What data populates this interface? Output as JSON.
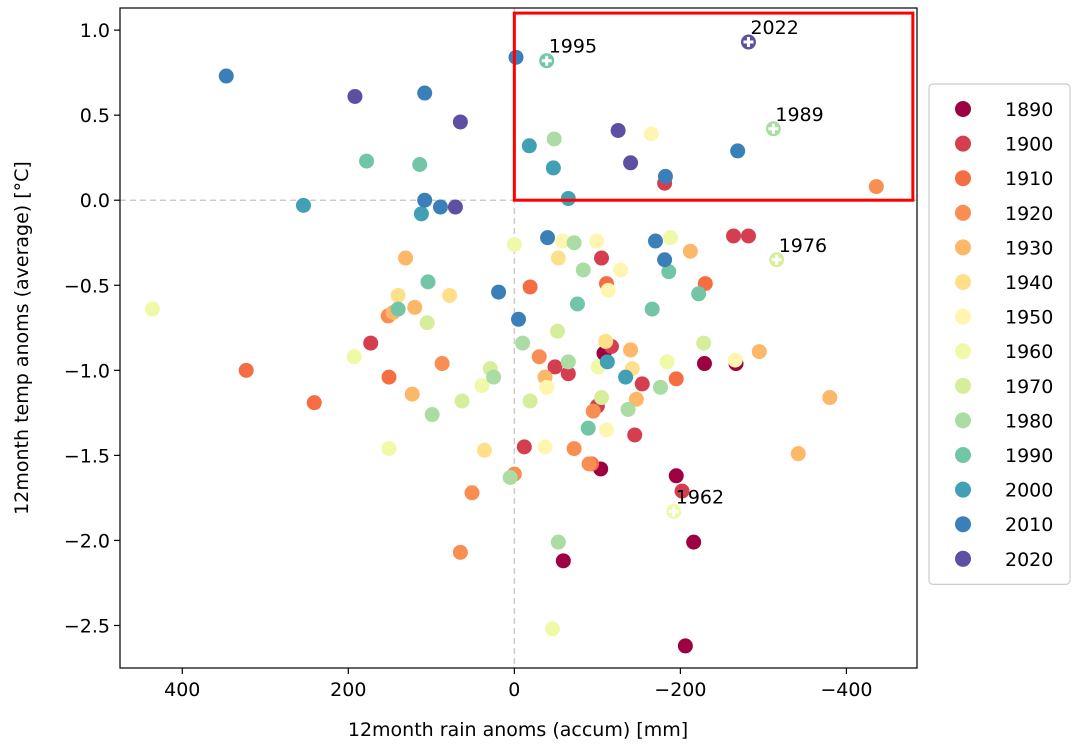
{
  "chart_data": {
    "type": "scatter",
    "x_label": "12month rain anoms (accum) [mm]",
    "y_label": "12month temp anoms (average) [°C]",
    "xlim": [
      475,
      -485
    ],
    "ylim": [
      -2.75,
      1.13
    ],
    "xticks": [
      400,
      200,
      0,
      {
        "value": -200,
        "label": "−200"
      },
      {
        "value": -400,
        "label": "−400"
      }
    ],
    "yticks": [
      {
        "value": -2.5,
        "label": "−2.5"
      },
      {
        "value": -2.0,
        "label": "−2.0"
      },
      {
        "value": -1.5,
        "label": "−1.5"
      },
      {
        "value": -1.0,
        "label": "−1.0"
      },
      {
        "value": -0.5,
        "label": "−0.5"
      },
      {
        "value": 0,
        "label": "0.0"
      },
      0.5,
      {
        "value": 1.0,
        "label": "1.0"
      }
    ],
    "zero_lines": true,
    "legend": "right",
    "highlight": {
      "x": [
        0,
        -480
      ],
      "y": [
        0,
        1.1
      ],
      "color": "#ff0000"
    },
    "series": [
      {
        "name": "1890",
        "color": "#9e0142",
        "x": [
          -59,
          -206,
          -216,
          -195,
          -229,
          -267,
          -108,
          -104
        ],
        "values": [
          -2.12,
          -2.62,
          -2.01,
          -1.62,
          -0.96,
          -0.96,
          -0.9,
          -1.58
        ]
      },
      {
        "name": "1900",
        "color": "#d53e4f",
        "x": [
          173,
          -105,
          -181,
          -12,
          -65,
          -117,
          -145,
          -154,
          -264,
          -282,
          -202,
          -100,
          -49
        ],
        "values": [
          -0.84,
          -0.34,
          0.1,
          -1.45,
          -1.02,
          -0.86,
          -1.38,
          -1.08,
          -0.21,
          -0.21,
          -1.71,
          -1.21,
          -0.98
        ]
      },
      {
        "name": "1910",
        "color": "#f46d43",
        "x": [
          323,
          241,
          151,
          -230,
          -195,
          -111,
          -93,
          -19
        ],
        "values": [
          -1.0,
          -1.19,
          -1.04,
          -0.49,
          -1.05,
          -0.49,
          -1.55,
          -0.51
        ]
      },
      {
        "name": "1920",
        "color": "#f98e52",
        "x": [
          51,
          65,
          -30,
          0,
          -90,
          -95,
          -72,
          -436,
          152,
          87
        ],
        "values": [
          -1.72,
          -2.07,
          -0.92,
          -1.61,
          -1.55,
          -1.24,
          -1.46,
          0.08,
          -0.68,
          -0.96
        ]
      },
      {
        "name": "1930",
        "color": "#fdb768",
        "x": [
          131,
          146,
          123,
          -37,
          -140,
          -147,
          -295,
          -380,
          -342,
          -212,
          120
        ],
        "values": [
          -0.34,
          -0.66,
          -1.14,
          -1.04,
          -0.88,
          -1.17,
          -0.89,
          -1.16,
          -1.49,
          -0.3,
          -0.63
        ]
      },
      {
        "name": "1940",
        "color": "#fee08b",
        "x": [
          78,
          -142,
          -110,
          -53,
          140,
          36
        ],
        "values": [
          -0.56,
          -0.99,
          -0.83,
          -0.34,
          -0.56,
          -1.47
        ]
      },
      {
        "name": "1950",
        "color": "#fef6b0",
        "x": [
          -165,
          -99,
          -128,
          -113,
          -266,
          -111,
          -37,
          -58,
          -39
        ],
        "values": [
          0.39,
          -0.24,
          -0.41,
          -0.53,
          -0.94,
          -1.35,
          -1.45,
          -0.24,
          -1.1
        ]
      },
      {
        "name": "1960",
        "color": "#f0f9a8",
        "x": [
          436,
          193,
          151,
          -46,
          0,
          -188,
          -192,
          -101,
          -184,
          39
        ],
        "values": [
          -0.64,
          -0.92,
          -1.46,
          -2.52,
          -0.26,
          -0.22,
          -1.83,
          -0.98,
          -0.95,
          -1.09
        ]
      },
      {
        "name": "1970",
        "color": "#d6ee9b",
        "x": [
          -105,
          63,
          -19,
          -228,
          -52,
          -316,
          29,
          105
        ],
        "values": [
          -1.16,
          -1.18,
          -1.18,
          -0.84,
          -0.77,
          -0.35,
          -0.99,
          -0.72
        ]
      },
      {
        "name": "1980",
        "color": "#aadca4",
        "x": [
          -48,
          -72,
          -83,
          -312,
          -10,
          -65,
          25,
          99,
          -53,
          -137,
          -176,
          5
        ],
        "values": [
          0.36,
          -0.25,
          -0.41,
          0.42,
          -0.84,
          -0.95,
          -1.04,
          -1.26,
          -2.01,
          -1.23,
          -1.1,
          -1.63
        ]
      },
      {
        "name": "1990",
        "color": "#73c6a5",
        "x": [
          178,
          114,
          -39,
          104,
          140,
          -76,
          -186,
          -222,
          -166,
          -89
        ],
        "values": [
          0.23,
          0.21,
          0.82,
          -0.48,
          -0.64,
          -0.61,
          -0.42,
          -0.55,
          -0.64,
          -1.34
        ]
      },
      {
        "name": "2000",
        "color": "#42a0b4",
        "x": [
          254,
          112,
          -18,
          -47,
          -65,
          -134,
          -112
        ],
        "values": [
          -0.03,
          -0.08,
          0.32,
          0.19,
          0.01,
          -1.04,
          -0.95
        ]
      },
      {
        "name": "2010",
        "color": "#3b7fb9",
        "x": [
          347,
          108,
          -2,
          108,
          89,
          -40,
          19,
          -5,
          -170,
          -181,
          -182,
          -269
        ],
        "values": [
          0.73,
          0.63,
          0.84,
          0,
          -0.04,
          -0.22,
          -0.54,
          -0.7,
          -0.24,
          -0.35,
          0.14,
          0.29
        ]
      },
      {
        "name": "2020",
        "color": "#5e4fa2",
        "x": [
          192,
          65,
          -125,
          -140,
          71,
          -282
        ],
        "values": [
          0.61,
          0.46,
          0.41,
          0.22,
          -0.04,
          0.93
        ]
      }
    ],
    "annotations": [
      {
        "text": "2022",
        "x": -282,
        "y": 0.93
      },
      {
        "text": "1995",
        "x": -39,
        "y": 0.82
      },
      {
        "text": "1989",
        "x": -312,
        "y": 0.42
      },
      {
        "text": "1976",
        "x": -316,
        "y": -0.35
      },
      {
        "text": "1962",
        "x": -192,
        "y": -1.83
      }
    ]
  }
}
